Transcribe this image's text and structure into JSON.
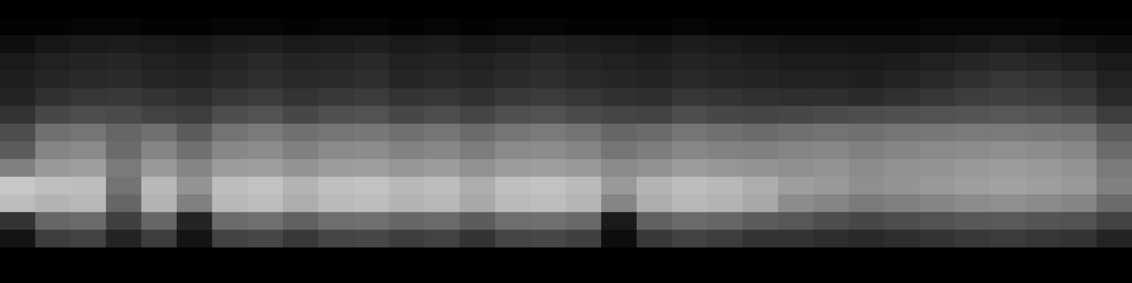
{
  "chart_data": {
    "type": "heatmap",
    "tick_labels": false,
    "grid": false,
    "color_range": [
      0,
      100
    ],
    "z": [
      [
        0,
        0,
        0,
        0,
        0,
        0,
        0,
        0,
        0,
        0,
        0,
        0,
        0,
        0,
        0,
        0,
        0,
        0,
        0,
        0,
        0,
        0,
        0,
        0,
        0,
        0,
        0,
        0,
        0,
        0,
        0,
        0
      ],
      [
        1,
        1,
        2,
        2,
        1,
        1,
        2,
        2,
        1,
        2,
        2,
        1,
        2,
        1,
        2,
        2,
        1,
        1,
        1,
        2,
        1,
        1,
        1,
        1,
        1,
        1,
        2,
        2,
        2,
        2,
        1,
        1
      ],
      [
        6,
        9,
        10,
        11,
        10,
        9,
        11,
        12,
        10,
        11,
        12,
        10,
        11,
        9,
        10,
        12,
        11,
        10,
        9,
        11,
        10,
        9,
        8,
        8,
        7,
        7,
        8,
        9,
        10,
        9,
        8,
        6
      ],
      [
        10,
        13,
        14,
        15,
        13,
        12,
        14,
        16,
        14,
        15,
        16,
        13,
        14,
        13,
        15,
        16,
        14,
        13,
        12,
        14,
        13,
        12,
        11,
        11,
        10,
        11,
        13,
        15,
        16,
        15,
        13,
        10
      ],
      [
        12,
        15,
        16,
        17,
        15,
        14,
        16,
        18,
        16,
        17,
        18,
        15,
        16,
        15,
        17,
        18,
        16,
        15,
        14,
        16,
        15,
        14,
        13,
        13,
        12,
        14,
        16,
        19,
        21,
        20,
        18,
        13
      ],
      [
        14,
        19,
        21,
        22,
        20,
        18,
        21,
        23,
        20,
        22,
        23,
        20,
        21,
        19,
        22,
        23,
        21,
        19,
        18,
        21,
        20,
        19,
        18,
        18,
        17,
        19,
        21,
        24,
        25,
        24,
        22,
        16
      ],
      [
        20,
        28,
        30,
        29,
        26,
        24,
        30,
        32,
        28,
        31,
        32,
        28,
        30,
        27,
        31,
        32,
        29,
        27,
        26,
        30,
        28,
        27,
        28,
        29,
        30,
        31,
        32,
        33,
        34,
        33,
        31,
        24
      ],
      [
        30,
        44,
        46,
        40,
        44,
        36,
        45,
        48,
        44,
        46,
        47,
        44,
        46,
        42,
        46,
        48,
        45,
        40,
        42,
        46,
        44,
        42,
        44,
        45,
        44,
        46,
        47,
        48,
        48,
        47,
        46,
        36
      ],
      [
        36,
        52,
        54,
        42,
        52,
        44,
        53,
        55,
        50,
        54,
        55,
        51,
        53,
        49,
        54,
        55,
        52,
        46,
        49,
        53,
        51,
        50,
        52,
        53,
        50,
        52,
        54,
        55,
        56,
        55,
        53,
        42
      ],
      [
        50,
        60,
        62,
        48,
        60,
        52,
        61,
        62,
        58,
        61,
        62,
        59,
        61,
        57,
        61,
        62,
        60,
        54,
        57,
        61,
        59,
        58,
        56,
        58,
        55,
        57,
        58,
        60,
        61,
        60,
        58,
        48
      ],
      [
        78,
        75,
        74,
        45,
        72,
        58,
        74,
        76,
        70,
        75,
        76,
        72,
        74,
        68,
        75,
        76,
        73,
        60,
        70,
        74,
        72,
        68,
        62,
        60,
        56,
        58,
        60,
        62,
        63,
        62,
        60,
        50
      ],
      [
        74,
        70,
        72,
        40,
        70,
        50,
        72,
        74,
        68,
        73,
        74,
        70,
        72,
        66,
        73,
        74,
        71,
        52,
        68,
        72,
        70,
        66,
        55,
        52,
        48,
        50,
        52,
        55,
        56,
        54,
        52,
        42
      ],
      [
        20,
        40,
        42,
        25,
        40,
        14,
        42,
        44,
        38,
        43,
        44,
        40,
        42,
        36,
        43,
        44,
        41,
        10,
        38,
        42,
        40,
        36,
        34,
        30,
        28,
        30,
        32,
        34,
        35,
        33,
        32,
        26
      ],
      [
        8,
        24,
        26,
        14,
        24,
        8,
        26,
        28,
        22,
        27,
        28,
        24,
        26,
        20,
        27,
        28,
        25,
        5,
        22,
        26,
        24,
        20,
        20,
        18,
        16,
        18,
        20,
        22,
        23,
        21,
        20,
        14
      ],
      [
        0,
        0,
        0,
        0,
        0,
        0,
        0,
        0,
        0,
        0,
        0,
        0,
        0,
        0,
        0,
        0,
        0,
        0,
        0,
        0,
        0,
        0,
        0,
        0,
        0,
        0,
        0,
        0,
        0,
        0,
        0,
        0
      ],
      [
        0,
        0,
        0,
        0,
        0,
        0,
        0,
        0,
        0,
        0,
        0,
        0,
        0,
        0,
        0,
        0,
        0,
        0,
        0,
        0,
        0,
        0,
        0,
        0,
        0,
        0,
        0,
        0,
        0,
        0,
        0,
        0
      ]
    ]
  }
}
